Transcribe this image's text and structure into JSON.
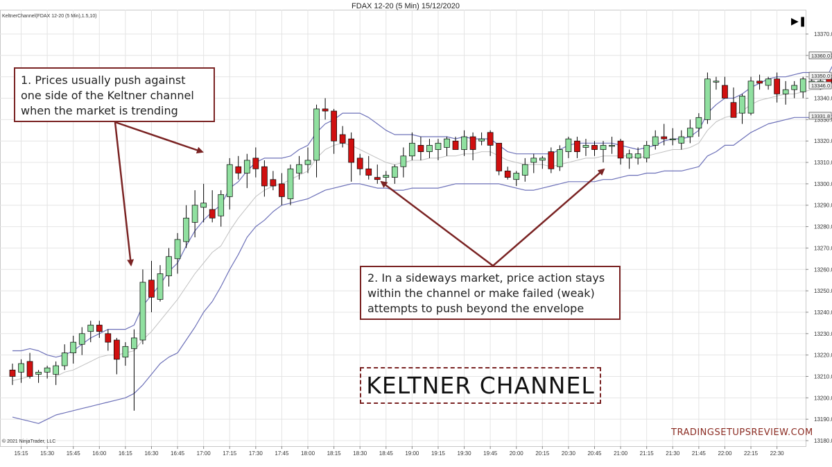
{
  "header": {
    "title": "FDAX 12-20 (5 Min)  15/12/2020",
    "indicator_label": "KeltnerChannel(FDAX 12-20 (5 Min),1.5,10)",
    "copyright": "© 2021 NinjaTrader, LLC",
    "skip_to_end_icon": "skip-to-end-icon"
  },
  "annotations": {
    "note1": {
      "lines": [
        "1. Prices usually push against",
        "one side of the Keltner channel",
        "when the market is trending"
      ]
    },
    "note2": {
      "lines": [
        "2. In a sideways market, price action stays",
        "within the channel or make failed (weak)",
        "attempts to push beyond the envelope"
      ]
    },
    "title": "KELTNER CHANNEL",
    "watermark": "TRADINGSETUPSREVIEW.COM"
  },
  "colors": {
    "up_candle": "#90e0a0",
    "down_candle": "#d01010",
    "channel_band": "#6c70b8",
    "mid_line": "#c0c0c0",
    "grid": "#e4e4e4",
    "annotation": "#7a2323"
  },
  "chart_data": {
    "type": "candlestick",
    "title": "FDAX 12-20 (5 Min)  15/12/2020",
    "ylim": [
      13180,
      13370
    ],
    "y_ticks": [
      13180,
      13190,
      13200,
      13210,
      13220,
      13230,
      13240,
      13250,
      13260,
      13270,
      13280,
      13290,
      13300,
      13310,
      13320,
      13330,
      13340,
      13350,
      13360,
      13370
    ],
    "x_labels": [
      "15:15",
      "15:30",
      "15:45",
      "16:00",
      "16:15",
      "16:30",
      "16:45",
      "17:00",
      "17:15",
      "17:30",
      "17:45",
      "18:00",
      "18:15",
      "18:30",
      "18:45",
      "19:00",
      "19:15",
      "19:30",
      "19:45",
      "20:00",
      "20:15",
      "20:30",
      "20:45",
      "21:00",
      "21:15",
      "21:30",
      "21:45",
      "22:00",
      "22:15",
      "22:30"
    ],
    "price_tags": [
      {
        "label": "13360.0",
        "value": 13360.0
      },
      {
        "label": "13350.0",
        "value": 13350.5
      },
      {
        "label": "13346.0",
        "value": 13346.0
      },
      {
        "label": "13331.8",
        "value": 13331.8
      }
    ],
    "candles": [
      [
        13213,
        13216,
        13206,
        13210
      ],
      [
        13212,
        13218,
        13207,
        13216
      ],
      [
        13217,
        13221,
        13209,
        13210
      ],
      [
        13211,
        13213,
        13207,
        13212
      ],
      [
        13212,
        13215,
        13209,
        13214
      ],
      [
        13211,
        13217,
        13206,
        13215
      ],
      [
        13215,
        13225,
        13213,
        13221
      ],
      [
        13221,
        13229,
        13216,
        13226
      ],
      [
        13225,
        13233,
        13220,
        13230
      ],
      [
        13231,
        13236,
        13226,
        13234
      ],
      [
        13234,
        13236,
        13228,
        13231
      ],
      [
        13230,
        13232,
        13222,
        13226
      ],
      [
        13227,
        13228,
        13211,
        13218
      ],
      [
        13219,
        13226,
        13215,
        13224
      ],
      [
        13223,
        13232,
        13194,
        13228
      ],
      [
        13227,
        13260,
        13225,
        13254
      ],
      [
        13255,
        13264,
        13240,
        13247
      ],
      [
        13246,
        13262,
        13245,
        13258
      ],
      [
        13257,
        13270,
        13252,
        13266
      ],
      [
        13265,
        13277,
        13258,
        13274
      ],
      [
        13273,
        13290,
        13270,
        13284
      ],
      [
        13282,
        13297,
        13275,
        13290
      ],
      [
        13289,
        13300,
        13282,
        13291
      ],
      [
        13288,
        13297,
        13282,
        13284
      ],
      [
        13285,
        13297,
        13280,
        13295
      ],
      [
        13294,
        13312,
        13288,
        13309
      ],
      [
        13308,
        13313,
        13302,
        13305
      ],
      [
        13305,
        13314,
        13298,
        13311
      ],
      [
        13312,
        13317,
        13303,
        13307
      ],
      [
        13308,
        13311,
        13294,
        13299
      ],
      [
        13302,
        13306,
        13297,
        13299
      ],
      [
        13300,
        13305,
        13290,
        13294
      ],
      [
        13293,
        13309,
        13290,
        13307
      ],
      [
        13305,
        13313,
        13302,
        13309
      ],
      [
        13309,
        13317,
        13305,
        13311
      ],
      [
        13311,
        13337,
        13303,
        13335
      ],
      [
        13335,
        13340,
        13330,
        13334
      ],
      [
        13334,
        13335,
        13314,
        13320
      ],
      [
        13323,
        13327,
        13317,
        13319
      ],
      [
        13321,
        13324,
        13301,
        13310
      ],
      [
        13312,
        13314,
        13304,
        13307
      ],
      [
        13307,
        13313,
        13302,
        13304
      ],
      [
        13303,
        13309,
        13300,
        13302
      ],
      [
        13303,
        13306,
        13299,
        13304
      ],
      [
        13303,
        13309,
        13300,
        13308
      ],
      [
        13308,
        13317,
        13303,
        13313
      ],
      [
        13313,
        13324,
        13311,
        13319
      ],
      [
        13318,
        13322,
        13311,
        13315
      ],
      [
        13315,
        13321,
        13312,
        13318
      ],
      [
        13316,
        13321,
        13311,
        13319
      ],
      [
        13317,
        13322,
        13313,
        13321
      ],
      [
        13320,
        13322,
        13316,
        13316
      ],
      [
        13316,
        13325,
        13313,
        13322
      ],
      [
        13322,
        13324,
        13311,
        13316
      ],
      [
        13320,
        13324,
        13318,
        13321
      ],
      [
        13324,
        13325,
        13313,
        13318
      ],
      [
        13319,
        13319,
        13304,
        13306
      ],
      [
        13306,
        13308,
        13302,
        13303
      ],
      [
        13302,
        13306,
        13299,
        13305
      ],
      [
        13304,
        13312,
        13301,
        13309
      ],
      [
        13310,
        13314,
        13305,
        13312
      ],
      [
        13311,
        13313,
        13307,
        13312
      ],
      [
        13315,
        13317,
        13305,
        13307
      ],
      [
        13308,
        13318,
        13306,
        13316
      ],
      [
        13315,
        13322,
        13312,
        13321
      ],
      [
        13320,
        13322,
        13312,
        13315
      ],
      [
        13317,
        13321,
        13313,
        13318
      ],
      [
        13318,
        13320,
        13313,
        13316
      ],
      [
        13316,
        13320,
        13310,
        13318
      ],
      [
        13318,
        13322,
        13314,
        13318
      ],
      [
        13320,
        13321,
        13309,
        13312
      ],
      [
        13312,
        13316,
        13307,
        13314
      ],
      [
        13312,
        13317,
        13309,
        13314
      ],
      [
        13312,
        13320,
        13310,
        13318
      ],
      [
        13318,
        13325,
        13316,
        13322
      ],
      [
        13322,
        13328,
        13318,
        13321
      ],
      [
        13321,
        13326,
        13318,
        13321
      ],
      [
        13319,
        13325,
        13316,
        13322
      ],
      [
        13322,
        13330,
        13319,
        13326
      ],
      [
        13326,
        13333,
        13322,
        13331
      ],
      [
        13330,
        13352,
        13328,
        13349
      ],
      [
        13348,
        13350,
        13344,
        13348
      ],
      [
        13346,
        13350,
        13340,
        13340
      ],
      [
        13338,
        13345,
        13331,
        13331
      ],
      [
        13333,
        13342,
        13328,
        13341
      ],
      [
        13333,
        13350,
        13332,
        13348
      ],
      [
        13348,
        13351,
        13344,
        13347
      ],
      [
        13346,
        13350,
        13344,
        13349
      ],
      [
        13349,
        13352,
        13338,
        13342
      ],
      [
        13342,
        13348,
        13337,
        13344
      ],
      [
        13344,
        13348,
        13340,
        13346
      ],
      [
        13343,
        13350,
        13340,
        13349
      ],
      [
        13348,
        13350,
        13345,
        13348
      ],
      [
        13348,
        13351,
        13344,
        13348
      ],
      [
        13349,
        13352,
        13346,
        13347
      ],
      [
        13344,
        13360,
        13342,
        13350
      ]
    ],
    "upper_band": [
      13222,
      13222,
      13223,
      13222,
      13220,
      13219,
      13220,
      13222,
      13225,
      13228,
      13230,
      13232,
      13232,
      13232,
      13234,
      13243,
      13248,
      13253,
      13259,
      13263,
      13271,
      13278,
      13283,
      13287,
      13290,
      13298,
      13301,
      13306,
      13310,
      13312,
      13312,
      13312,
      13313,
      13316,
      13318,
      13324,
      13328,
      13330,
      13333,
      13333,
      13333,
      13331,
      13328,
      13325,
      13323,
      13323,
      13323,
      13322,
      13322,
      13322,
      13322,
      13321,
      13322,
      13321,
      13321,
      13321,
      13318,
      13315,
      13314,
      13314,
      13314,
      13314,
      13314,
      13316,
      13318,
      13319,
      13319,
      13319,
      13319,
      13319,
      13318,
      13317,
      13316,
      13317,
      13318,
      13320,
      13321,
      13321,
      13322,
      13325,
      13333,
      13337,
      13340,
      13340,
      13342,
      13345,
      13347,
      13349,
      13350,
      13350,
      13351,
      13352,
      13352,
      13352,
      13352,
      13360
    ],
    "mid_line": [
      13208,
      13209,
      13210,
      13210,
      13210,
      13210,
      13212,
      13213,
      13215,
      13217,
      13219,
      13220,
      13220,
      13221,
      13222,
      13227,
      13231,
      13236,
      13241,
      13246,
      13252,
      13258,
      13263,
      13268,
      13271,
      13278,
      13284,
      13289,
      13294,
      13297,
      13299,
      13300,
      13302,
      13304,
      13306,
      13312,
      13316,
      13318,
      13319,
      13318,
      13316,
      13314,
      13312,
      13310,
      13309,
      13310,
      13311,
      13311,
      13312,
      13312,
      13313,
      13313,
      13314,
      13314,
      13315,
      13315,
      13313,
      13311,
      13310,
      13309,
      13309,
      13309,
      13308,
      13309,
      13310,
      13311,
      13312,
      13312,
      13313,
      13313,
      13313,
      13313,
      13312,
      13313,
      13314,
      13315,
      13316,
      13316,
      13317,
      13319,
      13325,
      13329,
      13331,
      13332,
      13334,
      13337,
      13339,
      13340,
      13341,
      13342,
      13342,
      13343,
      13344,
      13344,
      13345,
      13346
    ],
    "lower_band": [
      13191,
      13190,
      13189,
      13188,
      13190,
      13192,
      13193,
      13194,
      13195,
      13196,
      13197,
      13198,
      13199,
      13200,
      13202,
      13206,
      13211,
      13216,
      13219,
      13221,
      13227,
      13233,
      13240,
      13245,
      13252,
      13260,
      13267,
      13275,
      13280,
      13283,
      13287,
      13290,
      13291,
      13292,
      13293,
      13295,
      13297,
      13298,
      13299,
      13300,
      13300,
      13299,
      13298,
      13298,
      13297,
      13297,
      13298,
      13298,
      13298,
      13298,
      13299,
      13300,
      13300,
      13300,
      13300,
      13300,
      13300,
      13299,
      13298,
      13297,
      13297,
      13298,
      13299,
      13300,
      13301,
      13301,
      13301,
      13301,
      13302,
      13302,
      13303,
      13304,
      13304,
      13305,
      13305,
      13306,
      13306,
      13306,
      13307,
      13308,
      13313,
      13315,
      13318,
      13318,
      13321,
      13324,
      13326,
      13328,
      13329,
      13330,
      13331,
      13331,
      13331,
      13332,
      13332,
      13332
    ]
  }
}
